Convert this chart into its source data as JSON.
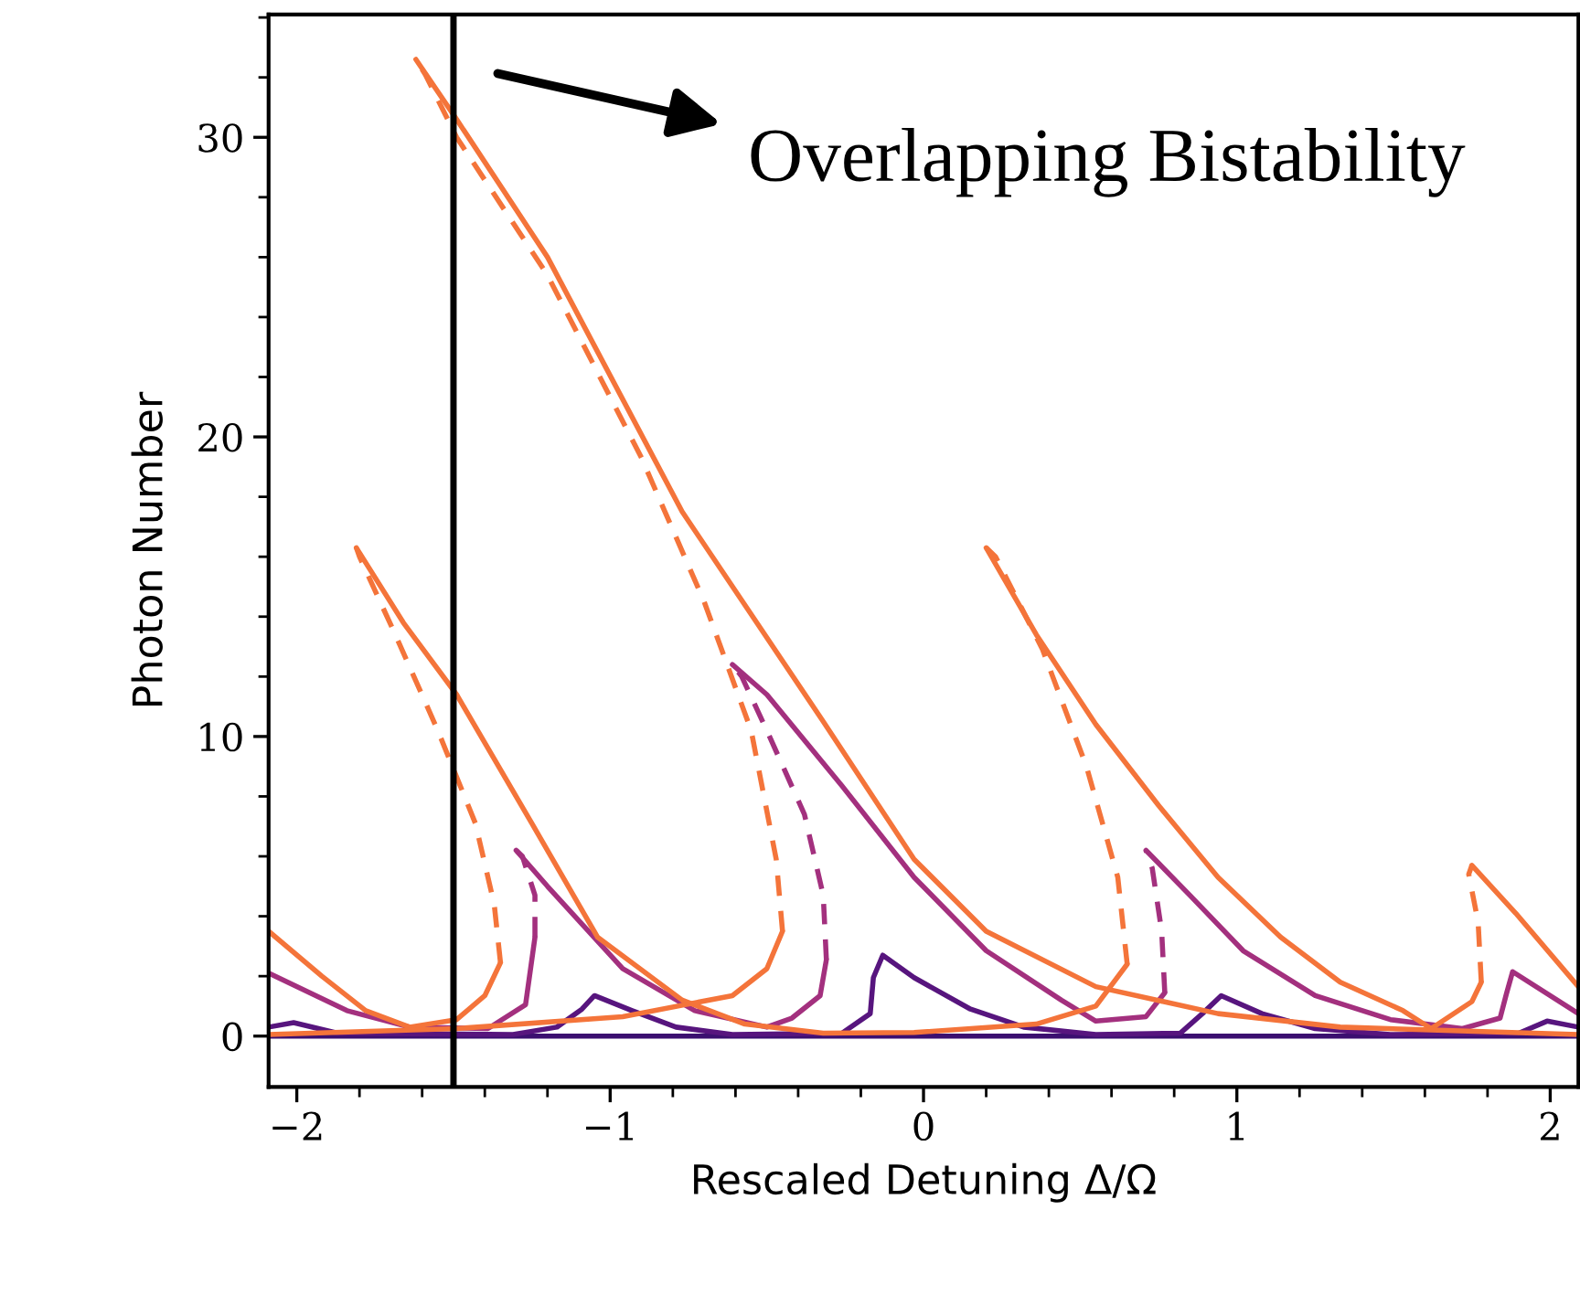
{
  "chart_data": {
    "type": "line",
    "xlabel": "Rescaled Detuning Δ/Ω",
    "ylabel": "Photon Number",
    "xlim": [
      -2.09,
      2.09
    ],
    "ylim": [
      -1.7,
      34.1
    ],
    "xticks": [
      {
        "value": -2,
        "label": "−2"
      },
      {
        "value": -1,
        "label": "−1"
      },
      0,
      1,
      2
    ],
    "yticks": [
      0,
      10,
      20,
      30
    ],
    "grid": false,
    "legend": false,
    "marker": "none",
    "annotations": [
      "Overlapping Bistability"
    ],
    "ref_lines": [
      {
        "axis": "x",
        "value": -1.5,
        "color": "#000000",
        "line_style": "solid"
      }
    ],
    "series": [
      {
        "color": "#3b0f70",
        "line_style": "solid",
        "x": [
          -2.09,
          2.09
        ],
        "values": [
          0,
          0
        ]
      },
      {
        "color": "#57157e",
        "line_style": "solid",
        "x": [
          -2.09,
          -2.01,
          -1.87,
          -1.31,
          -1.17,
          -1.09,
          -1.05,
          -0.93,
          -0.79,
          -0.61,
          -0.26,
          -0.17,
          -0.16,
          -0.13,
          -0.03,
          0.15,
          0.32,
          0.55,
          0.82,
          0.89,
          0.95,
          1.08,
          1.25,
          1.49,
          1.9,
          1.99,
          2.09
        ],
        "values": [
          0.3,
          0.45,
          0.1,
          0.05,
          0.3,
          0.9,
          1.35,
          0.85,
          0.3,
          0.05,
          0.1,
          0.75,
          1.95,
          2.7,
          1.95,
          0.9,
          0.3,
          0.05,
          0.1,
          0.75,
          1.35,
          0.75,
          0.25,
          0.05,
          0.1,
          0.5,
          0.3
        ]
      },
      {
        "color": "#a3307e",
        "line_style": "solid",
        "x": [
          -2.09,
          -1.84,
          -1.64,
          -1.39,
          -1.27,
          -1.24
        ],
        "values": [
          2.1,
          0.85,
          0.3,
          0.25,
          1.05,
          3.3
        ]
      },
      {
        "color": "#a3307e",
        "line_style": "dashed",
        "x": [
          -1.24,
          -1.24,
          -1.28,
          -1.3
        ],
        "values": [
          3.3,
          4.7,
          6.0,
          6.2
        ]
      },
      {
        "color": "#a3307e",
        "line_style": "solid",
        "x": [
          -1.3,
          -1.2,
          -0.96,
          -0.73,
          -0.5,
          -0.42,
          -0.33,
          -0.31
        ],
        "values": [
          6.2,
          5.0,
          2.25,
          0.85,
          0.3,
          0.6,
          1.35,
          2.55
        ]
      },
      {
        "color": "#a3307e",
        "line_style": "dashed",
        "x": [
          -0.31,
          -0.32,
          -0.38,
          -0.5,
          -0.58,
          -0.61
        ],
        "values": [
          2.55,
          4.7,
          7.4,
          10.2,
          12.0,
          12.4
        ]
      },
      {
        "color": "#a3307e",
        "line_style": "solid",
        "x": [
          -0.61,
          -0.5,
          -0.26,
          -0.03,
          0.2,
          0.44,
          0.55,
          0.71,
          0.77
        ],
        "values": [
          12.4,
          11.4,
          8.35,
          5.3,
          2.85,
          1.2,
          0.5,
          0.65,
          1.45
        ]
      },
      {
        "color": "#a3307e",
        "line_style": "dashed",
        "x": [
          0.77,
          0.76,
          0.73,
          0.71
        ],
        "values": [
          1.45,
          3.5,
          5.6,
          6.2
        ]
      },
      {
        "color": "#a3307e",
        "line_style": "solid",
        "x": [
          0.71,
          0.85,
          1.02,
          1.25,
          1.49,
          1.72,
          1.84,
          1.86,
          1.88,
          2.09
        ],
        "values": [
          6.2,
          4.7,
          2.85,
          1.35,
          0.55,
          0.25,
          0.6,
          1.4,
          2.15,
          0.75
        ]
      },
      {
        "color": "#f4743a",
        "line_style": "solid",
        "x": [
          -2.09,
          -1.92,
          -1.78,
          -1.64,
          -1.49,
          -1.4,
          -1.35
        ],
        "values": [
          3.5,
          2.0,
          0.85,
          0.3,
          0.55,
          1.35,
          2.45
        ]
      },
      {
        "color": "#f4743a",
        "line_style": "dashed",
        "x": [
          -1.35,
          -1.37,
          -1.43,
          -1.55,
          -1.69,
          -1.8,
          -1.81
        ],
        "values": [
          2.45,
          4.4,
          7.1,
          10.2,
          13.5,
          16.0,
          16.3
        ]
      },
      {
        "color": "#f4743a",
        "line_style": "solid",
        "x": [
          -1.81,
          -1.66,
          -1.49,
          -1.25,
          -1.04,
          -0.77,
          -0.57,
          -0.32,
          -0.03,
          0.36,
          0.55,
          0.65
        ],
        "values": [
          16.3,
          13.8,
          11.4,
          7.1,
          3.3,
          1.2,
          0.4,
          0.1,
          0.12,
          0.4,
          1.0,
          2.4
        ]
      },
      {
        "color": "#f4743a",
        "line_style": "dashed",
        "x": [
          0.65,
          0.62,
          0.52,
          0.38,
          0.23,
          0.2
        ],
        "values": [
          2.4,
          5.3,
          9.0,
          12.9,
          16.0,
          16.3
        ]
      },
      {
        "color": "#f4743a",
        "line_style": "solid",
        "x": [
          0.2,
          0.36,
          0.55,
          0.75,
          0.94,
          1.14,
          1.33,
          1.53,
          1.62,
          1.75,
          1.78
        ],
        "values": [
          16.3,
          13.4,
          10.4,
          7.7,
          5.3,
          3.3,
          1.8,
          0.85,
          0.25,
          1.15,
          1.8
        ]
      },
      {
        "color": "#f4743a",
        "line_style": "dashed",
        "x": [
          1.78,
          1.77,
          1.74,
          1.75
        ],
        "values": [
          1.8,
          3.8,
          5.4,
          5.7
        ]
      },
      {
        "color": "#f4743a",
        "line_style": "solid",
        "x": [
          1.75,
          1.89,
          2.09
        ],
        "values": [
          5.7,
          4.1,
          1.65
        ]
      },
      {
        "color": "#f4743a",
        "line_style": "solid",
        "x": [
          -2.09,
          -1.49,
          -0.96,
          -0.61,
          -0.5,
          -0.45
        ],
        "values": [
          0.05,
          0.25,
          0.65,
          1.35,
          2.25,
          3.5
        ]
      },
      {
        "color": "#f4743a",
        "line_style": "dashed",
        "x": [
          -0.45,
          -0.47,
          -0.55,
          -0.7,
          -0.9,
          -1.2,
          -1.49,
          -1.59,
          -1.62
        ],
        "values": [
          3.5,
          5.9,
          10.2,
          14.5,
          19.3,
          25.4,
          30.0,
          32.1,
          32.6
        ]
      },
      {
        "color": "#f4743a",
        "line_style": "solid",
        "x": [
          -1.62,
          -1.49,
          -1.2,
          -0.77,
          -0.32,
          -0.03,
          0.2,
          0.55,
          0.94,
          1.33,
          2.09
        ],
        "values": [
          32.6,
          30.6,
          26.0,
          17.5,
          10.5,
          5.9,
          3.5,
          1.65,
          0.75,
          0.3,
          0.05
        ]
      }
    ]
  }
}
